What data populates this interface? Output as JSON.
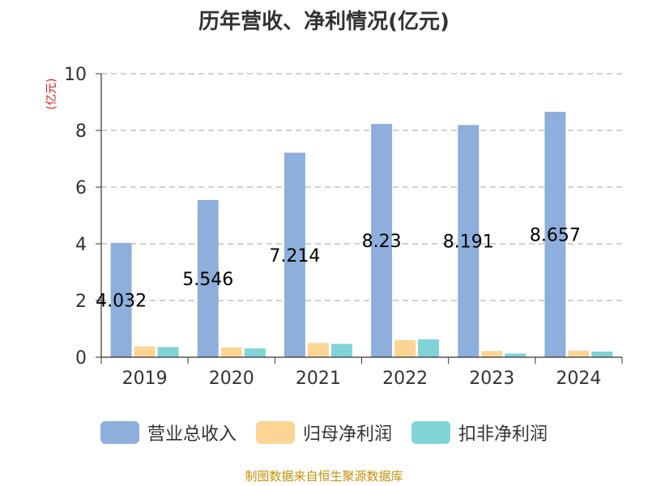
{
  "chart_data": {
    "type": "bar",
    "title": "历年营收、净利情况(亿元)",
    "ylabel": "(亿元)",
    "ylim": [
      0,
      10
    ],
    "yticks": [
      0,
      2,
      4,
      6,
      8,
      10
    ],
    "grid": true,
    "legend_position": "bottom",
    "categories": [
      "2019",
      "2020",
      "2021",
      "2022",
      "2023",
      "2024"
    ],
    "series": [
      {
        "name": "营业总收入",
        "color": "#8eaedb",
        "values": [
          4.032,
          5.546,
          7.214,
          8.23,
          8.191,
          8.657
        ],
        "data_labels": [
          "4.032",
          "5.546",
          "7.214",
          "8.23",
          "8.191",
          "8.657"
        ]
      },
      {
        "name": "归母净利润",
        "color": "#fcd595",
        "values": [
          0.38,
          0.34,
          0.5,
          0.6,
          0.22,
          0.23
        ]
      },
      {
        "name": "扣非净利润",
        "color": "#80d4d8",
        "values": [
          0.36,
          0.31,
          0.47,
          0.63,
          0.13,
          0.2
        ]
      }
    ]
  },
  "source": "制图数据来自恒生聚源数据库"
}
